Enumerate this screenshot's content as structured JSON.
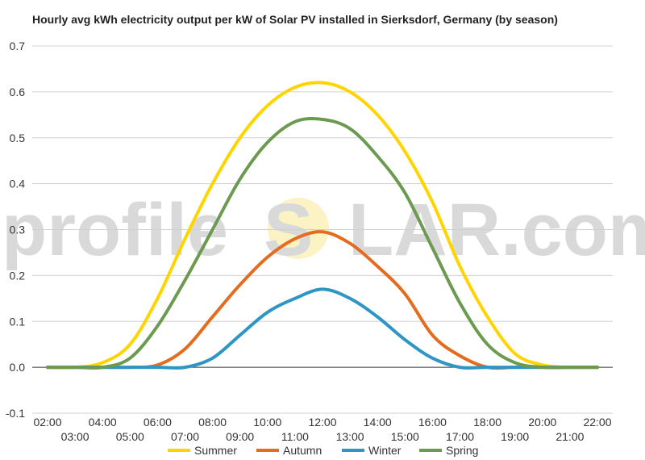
{
  "chart_data": {
    "type": "line",
    "title": "Hourly avg kWh electricity output per kW of Solar PV installed in Sierksdorf, Germany (by season)",
    "xlabel": "",
    "ylabel": "",
    "x": [
      "02:00",
      "03:00",
      "04:00",
      "05:00",
      "06:00",
      "07:00",
      "08:00",
      "09:00",
      "10:00",
      "11:00",
      "12:00",
      "13:00",
      "14:00",
      "15:00",
      "16:00",
      "17:00",
      "18:00",
      "19:00",
      "20:00",
      "21:00",
      "22:00"
    ],
    "ylim": [
      -0.1,
      0.7
    ],
    "yticks": [
      "-0.1",
      "0.0",
      "0.1",
      "0.2",
      "0.3",
      "0.4",
      "0.5",
      "0.6",
      "0.7"
    ],
    "grid": true,
    "legend_position": "bottom",
    "series": [
      {
        "name": "Summer",
        "color": "#FFD400",
        "values": [
          0.0,
          0.0,
          0.01,
          0.05,
          0.15,
          0.28,
          0.4,
          0.5,
          0.57,
          0.61,
          0.62,
          0.6,
          0.55,
          0.47,
          0.36,
          0.22,
          0.11,
          0.03,
          0.005,
          0.0,
          0.0
        ]
      },
      {
        "name": "Autumn",
        "color": "#E36C1E",
        "values": [
          0.0,
          0.0,
          0.0,
          0.0,
          0.005,
          0.04,
          0.11,
          0.18,
          0.24,
          0.28,
          0.295,
          0.27,
          0.22,
          0.16,
          0.07,
          0.025,
          0.0,
          0.0,
          0.0,
          0.0,
          0.0
        ]
      },
      {
        "name": "Winter",
        "color": "#2E96C4",
        "values": [
          0.0,
          0.0,
          0.0,
          0.0,
          0.0,
          0.0,
          0.02,
          0.07,
          0.12,
          0.15,
          0.17,
          0.15,
          0.11,
          0.06,
          0.02,
          0.0,
          0.0,
          0.0,
          0.0,
          0.0,
          0.0
        ]
      },
      {
        "name": "Spring",
        "color": "#6B9A50",
        "values": [
          0.0,
          0.0,
          0.0,
          0.02,
          0.09,
          0.19,
          0.3,
          0.41,
          0.49,
          0.535,
          0.54,
          0.52,
          0.46,
          0.38,
          0.26,
          0.14,
          0.05,
          0.01,
          0.0,
          0.0,
          0.0
        ]
      }
    ]
  },
  "watermark": {
    "left": "profile",
    "right": "LAR.com",
    "s": "S"
  }
}
